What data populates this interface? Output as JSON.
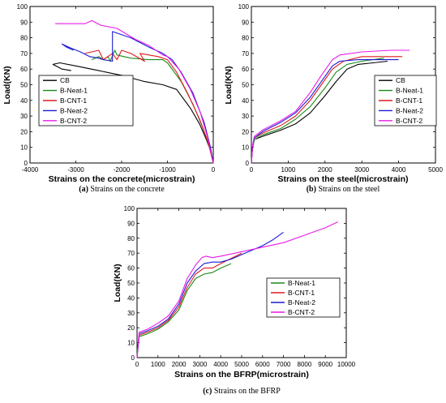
{
  "colors": {
    "CB": "#000000",
    "B-Neat-1": "#1a8a1a",
    "B-CNT-1": "#e01b1b",
    "B-Neat-2": "#1a1ad6",
    "B-CNT-2": "#e81ce8"
  },
  "chart_data": [
    {
      "type": "line",
      "caption_tag": "(a)",
      "caption_text": " Strains on the concrete",
      "xlabel": "Strains on the concrete(microstrain)",
      "ylabel": "Load(KN)",
      "xlim": [
        -4000,
        0
      ],
      "ylim": [
        0,
        100
      ],
      "xticks": [
        -4000,
        -3000,
        -2000,
        -1000,
        0
      ],
      "yticks": [
        0,
        10,
        20,
        30,
        40,
        50,
        60,
        70,
        80,
        90,
        100
      ],
      "legend": "bottom-left",
      "series": [
        {
          "name": "CB",
          "points": [
            [
              -3100,
              59
            ],
            [
              -3300,
              60
            ],
            [
              -3500,
              63
            ],
            [
              -3350,
              64
            ],
            [
              -3000,
              62
            ],
            [
              -2500,
              59
            ],
            [
              -2000,
              56
            ],
            [
              -1500,
              52
            ],
            [
              -1100,
              50
            ],
            [
              -800,
              47
            ],
            [
              -500,
              35
            ],
            [
              -300,
              25
            ],
            [
              -150,
              15
            ],
            [
              -60,
              8
            ],
            [
              0,
              0
            ]
          ]
        },
        {
          "name": "B-Neat-1",
          "points": [
            [
              -2650,
              66
            ],
            [
              -2500,
              68
            ],
            [
              -2400,
              66
            ],
            [
              -2300,
              68
            ],
            [
              -2250,
              65
            ],
            [
              -2150,
              72
            ],
            [
              -2100,
              69
            ],
            [
              -1950,
              68
            ],
            [
              -1800,
              67
            ],
            [
              -1400,
              66
            ],
            [
              -1100,
              66
            ],
            [
              -1000,
              64
            ],
            [
              -700,
              52
            ],
            [
              -450,
              38
            ],
            [
              -250,
              24
            ],
            [
              -100,
              12
            ],
            [
              0,
              0
            ]
          ]
        },
        {
          "name": "B-CNT-1",
          "points": [
            [
              -2800,
              70
            ],
            [
              -2500,
              72
            ],
            [
              -2400,
              66
            ],
            [
              -2200,
              70
            ],
            [
              -2100,
              66
            ],
            [
              -2000,
              72
            ],
            [
              -1800,
              70
            ],
            [
              -1500,
              65
            ],
            [
              -1600,
              70
            ],
            [
              -1200,
              68
            ],
            [
              -1000,
              66
            ],
            [
              -800,
              58
            ],
            [
              -550,
              44
            ],
            [
              -300,
              28
            ],
            [
              -120,
              14
            ],
            [
              0,
              0
            ]
          ]
        },
        {
          "name": "B-Neat-2",
          "points": [
            [
              -3050,
              72
            ],
            [
              -3200,
              74
            ],
            [
              -3300,
              76
            ],
            [
              -3150,
              74
            ],
            [
              -2900,
              71
            ],
            [
              -2700,
              68
            ],
            [
              -2500,
              67
            ],
            [
              -2400,
              66
            ],
            [
              -2200,
              65
            ],
            [
              -2200,
              84
            ],
            [
              -1800,
              80
            ],
            [
              -1400,
              74
            ],
            [
              -1100,
              70
            ],
            [
              -900,
              66
            ],
            [
              -700,
              58
            ],
            [
              -450,
              45
            ],
            [
              -200,
              26
            ],
            [
              -60,
              10
            ],
            [
              0,
              0
            ]
          ]
        },
        {
          "name": "B-CNT-2",
          "points": [
            [
              -3450,
              89
            ],
            [
              -2800,
              89
            ],
            [
              -2650,
              91
            ],
            [
              -2450,
              88
            ],
            [
              -2100,
              86
            ],
            [
              -1700,
              79
            ],
            [
              -1400,
              75
            ],
            [
              -1100,
              69
            ],
            [
              -1000,
              68
            ],
            [
              -750,
              60
            ],
            [
              -500,
              47
            ],
            [
              -280,
              32
            ],
            [
              -120,
              16
            ],
            [
              0,
              0
            ]
          ]
        }
      ]
    },
    {
      "type": "line",
      "caption_tag": "(b)",
      "caption_text": " Strains on the steel",
      "xlabel": "Strains on the steel(microstrain)",
      "ylabel": "Load(KN)",
      "xlim": [
        0,
        5000
      ],
      "ylim": [
        0,
        100
      ],
      "xticks": [
        0,
        1000,
        2000,
        3000,
        4000,
        5000
      ],
      "yticks": [
        0,
        10,
        20,
        30,
        40,
        50,
        60,
        70,
        80,
        90,
        100
      ],
      "legend": "bottom-right",
      "series": [
        {
          "name": "CB",
          "points": [
            [
              0,
              0
            ],
            [
              30,
              10
            ],
            [
              80,
              15
            ],
            [
              300,
              17
            ],
            [
              800,
              21
            ],
            [
              1200,
              25
            ],
            [
              1600,
              32
            ],
            [
              2000,
              43
            ],
            [
              2300,
              52
            ],
            [
              2600,
              60
            ],
            [
              2900,
              63
            ],
            [
              3300,
              64
            ],
            [
              3700,
              65
            ]
          ]
        },
        {
          "name": "B-Neat-1",
          "points": [
            [
              0,
              0
            ],
            [
              30,
              10
            ],
            [
              80,
              15
            ],
            [
              300,
              18
            ],
            [
              800,
              22
            ],
            [
              1200,
              28
            ],
            [
              1600,
              36
            ],
            [
              2000,
              48
            ],
            [
              2300,
              58
            ],
            [
              2600,
              63
            ],
            [
              3000,
              65
            ],
            [
              3600,
              67
            ]
          ]
        },
        {
          "name": "B-CNT-1",
          "points": [
            [
              0,
              0
            ],
            [
              30,
              10
            ],
            [
              80,
              16
            ],
            [
              300,
              19
            ],
            [
              800,
              24
            ],
            [
              1200,
              30
            ],
            [
              1600,
              40
            ],
            [
              1900,
              50
            ],
            [
              2200,
              60
            ],
            [
              2500,
              65
            ],
            [
              3000,
              68
            ],
            [
              4100,
              68
            ]
          ]
        },
        {
          "name": "B-Neat-2",
          "points": [
            [
              0,
              0
            ],
            [
              30,
              10
            ],
            [
              80,
              16
            ],
            [
              300,
              20
            ],
            [
              800,
              26
            ],
            [
              1200,
              32
            ],
            [
              1600,
              42
            ],
            [
              1900,
              52
            ],
            [
              2200,
              62
            ],
            [
              2400,
              65
            ],
            [
              2900,
              66
            ],
            [
              4000,
              66
            ]
          ]
        },
        {
          "name": "B-CNT-2",
          "points": [
            [
              0,
              0
            ],
            [
              30,
              11
            ],
            [
              80,
              17
            ],
            [
              300,
              21
            ],
            [
              800,
              27
            ],
            [
              1200,
              33
            ],
            [
              1600,
              45
            ],
            [
              1900,
              56
            ],
            [
              2200,
              66
            ],
            [
              2400,
              69
            ],
            [
              3000,
              71
            ],
            [
              3800,
              72
            ],
            [
              4300,
              72
            ]
          ]
        }
      ]
    },
    {
      "type": "line",
      "caption_tag": "(c)",
      "caption_text": " Strains on the BFRP",
      "xlabel": "Strains on the BFRP(microstrain)",
      "ylabel": "Load(KN)",
      "xlim": [
        0,
        10000
      ],
      "ylim": [
        0,
        100
      ],
      "xticks": [
        0,
        1000,
        2000,
        3000,
        4000,
        5000,
        6000,
        7000,
        8000,
        9000,
        10000
      ],
      "yticks": [
        0,
        10,
        20,
        30,
        40,
        50,
        60,
        70,
        80,
        90,
        100
      ],
      "legend": "bottom-right",
      "series": [
        {
          "name": "B-Neat-1",
          "points": [
            [
              0,
              0
            ],
            [
              30,
              5
            ],
            [
              100,
              14
            ],
            [
              500,
              16
            ],
            [
              1000,
              19
            ],
            [
              1500,
              24
            ],
            [
              2000,
              32
            ],
            [
              2400,
              45
            ],
            [
              2800,
              53
            ],
            [
              3200,
              56
            ],
            [
              3600,
              57
            ],
            [
              4000,
              60
            ],
            [
              4500,
              63
            ]
          ]
        },
        {
          "name": "B-CNT-1",
          "points": [
            [
              0,
              0
            ],
            [
              30,
              5
            ],
            [
              100,
              15
            ],
            [
              500,
              17
            ],
            [
              1000,
              20
            ],
            [
              1500,
              25
            ],
            [
              2000,
              34
            ],
            [
              2400,
              47
            ],
            [
              2800,
              56
            ],
            [
              3200,
              60
            ],
            [
              3600,
              60
            ],
            [
              4000,
              63
            ],
            [
              5000,
              70
            ]
          ]
        },
        {
          "name": "B-Neat-2",
          "points": [
            [
              0,
              0
            ],
            [
              30,
              5
            ],
            [
              100,
              16
            ],
            [
              500,
              18
            ],
            [
              1000,
              21
            ],
            [
              1500,
              26
            ],
            [
              2000,
              36
            ],
            [
              2400,
              50
            ],
            [
              2800,
              58
            ],
            [
              3200,
              63
            ],
            [
              3600,
              64
            ],
            [
              4000,
              64
            ],
            [
              4500,
              66
            ],
            [
              5000,
              69
            ],
            [
              5500,
              72
            ],
            [
              6000,
              75
            ],
            [
              6500,
              79
            ],
            [
              7000,
              84
            ]
          ]
        },
        {
          "name": "B-CNT-2",
          "points": [
            [
              0,
              0
            ],
            [
              30,
              6
            ],
            [
              100,
              17
            ],
            [
              500,
              19
            ],
            [
              1000,
              23
            ],
            [
              1500,
              28
            ],
            [
              2000,
              38
            ],
            [
              2400,
              53
            ],
            [
              2800,
              62
            ],
            [
              3100,
              67
            ],
            [
              3300,
              68
            ],
            [
              3600,
              67
            ],
            [
              4000,
              68
            ],
            [
              5000,
              71
            ],
            [
              6000,
              74
            ],
            [
              7000,
              77
            ],
            [
              8000,
              82
            ],
            [
              9000,
              87
            ],
            [
              9600,
              91
            ]
          ]
        }
      ]
    }
  ]
}
